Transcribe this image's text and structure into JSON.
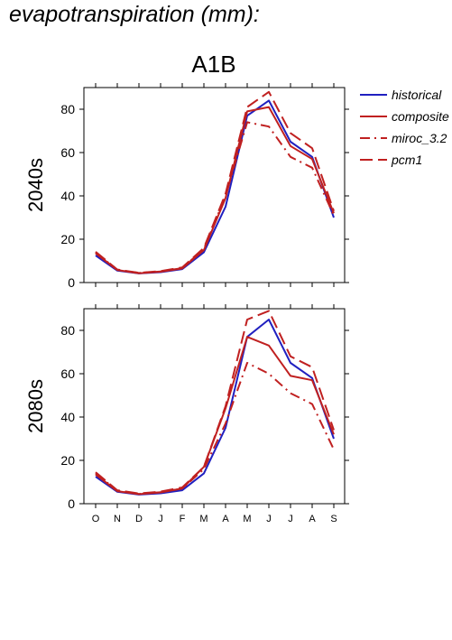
{
  "figure_title": "evapotranspiration (mm):",
  "chart_data": {
    "type": "line",
    "scenario": "A1B",
    "categories": [
      "O",
      "N",
      "D",
      "J",
      "F",
      "M",
      "A",
      "M",
      "J",
      "J",
      "A",
      "S"
    ],
    "ylim": [
      0,
      90
    ],
    "yticks": [
      0,
      20,
      40,
      60,
      80
    ],
    "colors": {
      "historical": "#2020c0",
      "red": "#c02020"
    },
    "legend": {
      "placement": "right",
      "entries": [
        {
          "name": "historical",
          "color": "#2020c0",
          "dash": "solid"
        },
        {
          "name": "composite",
          "color": "#c02020",
          "dash": "solid"
        },
        {
          "name": "miroc_3.2",
          "color": "#c02020",
          "dash": "dash-dot"
        },
        {
          "name": "pcm1",
          "color": "#c02020",
          "dash": "long-dash"
        }
      ]
    },
    "panels": [
      {
        "label": "2040s",
        "series": [
          {
            "name": "historical",
            "values": [
              12.5,
              5.5,
              4.2,
              4.8,
              6.2,
              14,
              35,
              77,
              84,
              65,
              58,
              30
            ]
          },
          {
            "name": "composite",
            "values": [
              13.5,
              5.8,
              4.3,
              5.0,
              6.5,
              15,
              39,
              79,
              81,
              63,
              57,
              32
            ]
          },
          {
            "name": "miroc_3.2",
            "values": [
              13.8,
              5.9,
              4.4,
              5.1,
              6.7,
              15.5,
              40,
              74,
              72,
              58,
              53,
              31
            ]
          },
          {
            "name": "pcm1",
            "values": [
              14.2,
              6.0,
              4.5,
              5.3,
              7.0,
              16,
              41,
              81,
              88,
              69,
              62,
              33
            ]
          }
        ]
      },
      {
        "label": "2080s",
        "series": [
          {
            "name": "historical",
            "values": [
              12.5,
              5.5,
              4.2,
              4.8,
              6.2,
              14,
              35,
              77,
              85,
              65,
              58,
              30
            ]
          },
          {
            "name": "composite",
            "values": [
              13.5,
              5.8,
              4.4,
              5.2,
              7.0,
              17,
              44,
              77,
              73,
              59,
              57,
              32
            ]
          },
          {
            "name": "miroc_3.2",
            "values": [
              14.0,
              6.0,
              4.5,
              5.3,
              7.0,
              16,
              37,
              65,
              60,
              51,
              46,
              25
            ]
          },
          {
            "name": "pcm1",
            "values": [
              14.5,
              6.2,
              4.7,
              5.6,
              7.5,
              17,
              45,
              85,
              89,
              68,
              63,
              34
            ]
          }
        ]
      }
    ]
  }
}
